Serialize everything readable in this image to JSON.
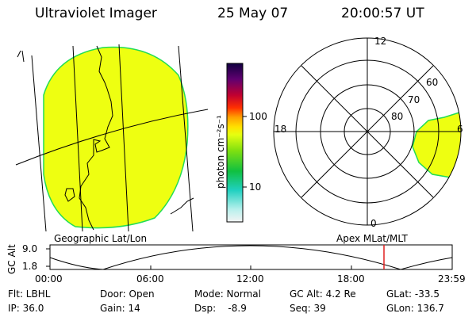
{
  "header": {
    "title": "Ultraviolet Imager",
    "date": "25 May 07",
    "time": "20:00:57 UT"
  },
  "colorbar": {
    "label": "photon cm⁻²s⁻¹",
    "ticks": [
      "100",
      "10"
    ]
  },
  "polar_plot": {
    "mlt_labels": [
      "12",
      "18",
      "6",
      "0"
    ],
    "mlat_labels": [
      "60",
      "70",
      "80"
    ]
  },
  "panel_labels": {
    "left": "Geographic Lat/Lon",
    "right": "Apex MLat/MLT"
  },
  "altitude_strip": {
    "axis_label": "GC Alt",
    "y_ticks": [
      "9.0",
      "1.8"
    ],
    "x_ticks": [
      "00:00",
      "06:00",
      "12:00",
      "18:00",
      "23:59"
    ]
  },
  "footer": {
    "row1": [
      "Flt: LBHL",
      "Door: Open",
      "Mode: Normal",
      "GC Alt: 4.2 Re",
      "GLat: -33.5"
    ],
    "row2": [
      "IP: 36.0",
      "Gain: 14",
      "Dsp:    -8.9",
      "Seq: 39",
      "GLon: 136.7"
    ]
  },
  "colors": {
    "aurora_fill": "#eeff11",
    "aurora_edge": "#22dd55",
    "time_marker": "#e02020"
  }
}
